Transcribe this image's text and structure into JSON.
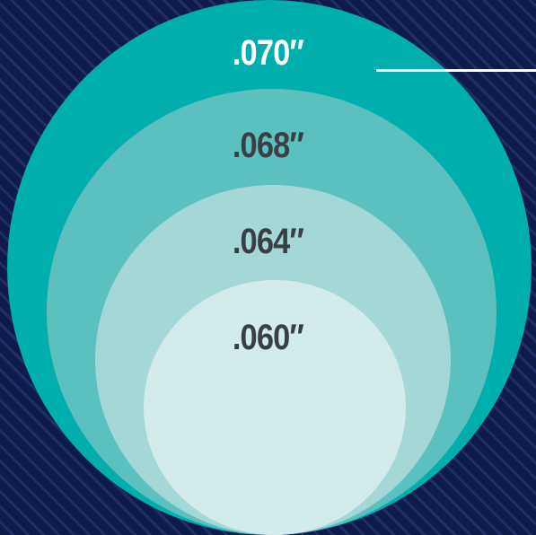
{
  "diagram": {
    "rings": [
      {
        "label": ".070″",
        "fill": "#00aeae",
        "text_color": "#ffffff"
      },
      {
        "label": ".068″",
        "fill": "#5bc0be",
        "text_color": "#3a3f44"
      },
      {
        "label": ".064″",
        "fill": "#a4d8d7",
        "text_color": "#3a3f44"
      },
      {
        "label": ".060″",
        "fill": "#d3ebeb",
        "text_color": "#3a3f44"
      }
    ],
    "background": "#0d1a4a",
    "stripe_color": "#1f2f66",
    "pointer_color": "#ffffff"
  }
}
